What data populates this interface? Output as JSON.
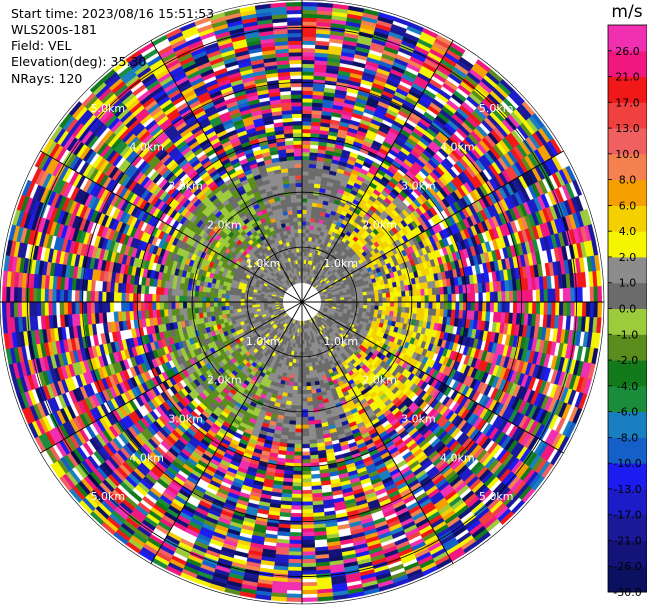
{
  "header": {
    "start_time": "Start time: 2023/08/16 15:51:53",
    "instrument": "WLS200s-181",
    "field": "Field: VEL",
    "elevation": "Elevation(deg): 35.30",
    "nrays": "NRays: 120"
  },
  "chart_data": {
    "type": "heatmap",
    "projection": "polar-ppi",
    "field": "VEL",
    "n_rays": 120,
    "range_rings_km": [
      {
        "value": 1.0,
        "label": "1.0km"
      },
      {
        "value": 2.0,
        "label": "2.0km"
      },
      {
        "value": 3.0,
        "label": "3.0km"
      },
      {
        "value": 4.0,
        "label": "4.0km"
      },
      {
        "value": 5.0,
        "label": "5.0km"
      }
    ],
    "max_range_km": 5.5,
    "colorbar": {
      "unit": "m/s",
      "bounds": [
        -30.0,
        -26.0,
        -21.0,
        -17.0,
        -13.0,
        -10.0,
        -8.0,
        -6.0,
        -4.0,
        -2.0,
        -1.0,
        0.0,
        1.0,
        2.0,
        4.0,
        6.0,
        8.0,
        10.0,
        13.0,
        17.0,
        21.0,
        26.0
      ],
      "tick_labels": [
        "-30.0",
        "-26.0",
        "-21.0",
        "-17.0",
        "-13.0",
        "-10.0",
        "-8.0",
        "-6.0",
        "-4.0",
        "-2.0",
        "-1.0",
        "0.0",
        "1.0",
        "2.0",
        "4.0",
        "6.0",
        "8.0",
        "10.0",
        "13.0",
        "17.0",
        "21.0",
        "26.0"
      ],
      "colors": [
        "#0b1160",
        "#14137a",
        "#1a1a99",
        "#1c1cc8",
        "#1c1cf0",
        "#1560c8",
        "#1a7fc0",
        "#1a8c3a",
        "#137a1b",
        "#5a8c1e",
        "#9ccb3b",
        "#6b6b6b",
        "#8c8c8c",
        "#f5f500",
        "#f5d000",
        "#f5a000",
        "#f58050",
        "#f06060",
        "#f04040",
        "#f01818",
        "#f0187f",
        "#f030b0"
      ]
    }
  }
}
